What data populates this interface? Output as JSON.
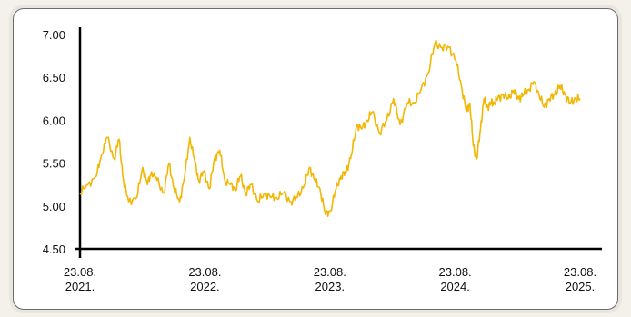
{
  "chart_data": {
    "type": "line",
    "title": "",
    "xlabel": "",
    "ylabel": "",
    "ylim": [
      4.5,
      7.0
    ],
    "yticks": [
      "7.00",
      "6.50",
      "6.00",
      "5.50",
      "5.00",
      "4.50"
    ],
    "ytick_values": [
      7.0,
      6.5,
      6.0,
      5.5,
      5.0,
      4.5
    ],
    "xticks": [
      {
        "line1": "23.08.",
        "line2": "2021.",
        "date": "2021-08-23"
      },
      {
        "line1": "23.08.",
        "line2": "2022.",
        "date": "2022-08-23"
      },
      {
        "line1": "23.08.",
        "line2": "2023.",
        "date": "2023-08-23"
      },
      {
        "line1": "23.08.",
        "line2": "2024.",
        "date": "2024-08-23"
      },
      {
        "line1": "23.08.",
        "line2": "2025.",
        "date": "2025-08-23"
      }
    ],
    "xlim": [
      "2021-08-23",
      "2025-08-23"
    ],
    "grid": false,
    "line_color": "#f2b705",
    "series": [
      {
        "x": [
          "2021-08-23",
          "2021-09-15",
          "2021-10-10",
          "2021-10-25",
          "2021-11-10",
          "2021-12-01",
          "2021-12-15",
          "2021-12-28",
          "2022-01-12",
          "2022-02-05",
          "2022-02-22",
          "2022-03-08",
          "2022-03-20",
          "2022-04-05",
          "2022-04-25",
          "2022-05-10",
          "2022-05-25",
          "2022-06-10",
          "2022-06-25",
          "2022-07-10",
          "2022-07-25",
          "2022-08-05",
          "2022-08-20",
          "2022-09-05",
          "2022-09-20",
          "2022-10-05",
          "2022-10-20",
          "2022-11-05",
          "2022-11-20",
          "2022-12-05",
          "2022-12-20",
          "2023-01-05",
          "2023-01-25",
          "2023-02-15",
          "2023-03-05",
          "2023-03-20",
          "2023-04-10",
          "2023-05-01",
          "2023-05-20",
          "2023-06-10",
          "2023-06-25",
          "2023-07-10",
          "2023-07-25",
          "2023-08-10",
          "2023-08-25",
          "2023-09-10",
          "2023-09-25",
          "2023-10-10",
          "2023-10-25",
          "2023-11-10",
          "2023-11-25",
          "2023-12-10",
          "2023-12-25",
          "2024-01-15",
          "2024-02-05",
          "2024-02-25",
          "2024-03-15",
          "2024-04-05",
          "2024-04-25",
          "2024-05-15",
          "2024-06-05",
          "2024-06-25",
          "2024-07-15",
          "2024-08-05",
          "2024-08-25",
          "2024-09-10",
          "2024-09-25",
          "2024-10-05",
          "2024-10-15",
          "2024-10-25",
          "2024-11-05",
          "2024-11-15",
          "2024-11-25",
          "2024-12-05",
          "2024-12-15",
          "2024-12-25",
          "2025-01-10",
          "2025-01-25",
          "2025-02-10",
          "2025-02-25",
          "2025-03-10",
          "2025-03-25",
          "2025-04-10",
          "2025-04-25",
          "2025-05-10",
          "2025-05-25",
          "2025-06-10",
          "2025-06-25",
          "2025-07-10",
          "2025-07-25",
          "2025-08-10",
          "2025-08-23"
        ],
        "values": [
          5.15,
          5.25,
          5.35,
          5.6,
          5.8,
          5.55,
          5.78,
          5.3,
          5.05,
          5.1,
          5.45,
          5.25,
          5.4,
          5.3,
          5.15,
          5.5,
          5.2,
          5.05,
          5.35,
          5.8,
          5.5,
          5.3,
          5.4,
          5.2,
          5.55,
          5.65,
          5.3,
          5.25,
          5.2,
          5.35,
          5.15,
          5.25,
          5.05,
          5.15,
          5.1,
          5.1,
          5.15,
          5.05,
          5.1,
          5.25,
          5.45,
          5.3,
          5.2,
          4.9,
          4.95,
          5.2,
          5.35,
          5.4,
          5.6,
          5.95,
          5.9,
          6.0,
          6.1,
          5.85,
          6.0,
          6.25,
          5.95,
          6.2,
          6.2,
          6.35,
          6.55,
          6.9,
          6.85,
          6.85,
          6.7,
          6.4,
          6.1,
          6.2,
          5.7,
          5.55,
          5.9,
          6.25,
          6.15,
          6.2,
          6.2,
          6.25,
          6.3,
          6.25,
          6.35,
          6.25,
          6.3,
          6.35,
          6.45,
          6.3,
          6.15,
          6.25,
          6.3,
          6.4,
          6.3,
          6.2,
          6.25,
          6.25
        ]
      }
    ]
  }
}
